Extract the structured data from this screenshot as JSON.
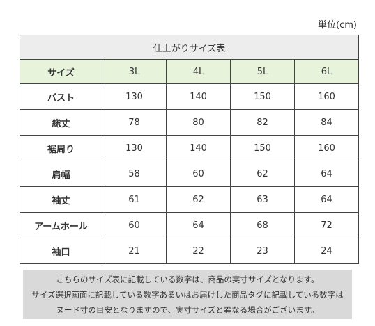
{
  "unit_label": "単位(cm)",
  "table": {
    "title": "仕上がりサイズ表",
    "header": {
      "label": "サイズ",
      "sizes": [
        "3L",
        "4L",
        "5L",
        "6L"
      ]
    },
    "rows": [
      {
        "label": "バスト",
        "values": [
          "130",
          "140",
          "150",
          "160"
        ]
      },
      {
        "label": "総丈",
        "values": [
          "78",
          "80",
          "82",
          "84"
        ]
      },
      {
        "label": "裾周り",
        "values": [
          "130",
          "140",
          "150",
          "160"
        ]
      },
      {
        "label": "肩幅",
        "values": [
          "58",
          "60",
          "62",
          "64"
        ]
      },
      {
        "label": "袖丈",
        "values": [
          "61",
          "62",
          "63",
          "64"
        ]
      },
      {
        "label": "アームホール",
        "values": [
          "60",
          "64",
          "68",
          "72"
        ]
      },
      {
        "label": "袖口",
        "values": [
          "21",
          "22",
          "23",
          "24"
        ]
      }
    ]
  },
  "note": {
    "lines": [
      "こちらのサイズ表に記載している数字は、商品の実寸サイズとなります。",
      "サイズ選択画面に記載している数字あるいはお届けした商品タグに記載している数字は",
      "ヌード寸の目安となりますので、実寸サイズと異なる場合がございます。"
    ]
  }
}
